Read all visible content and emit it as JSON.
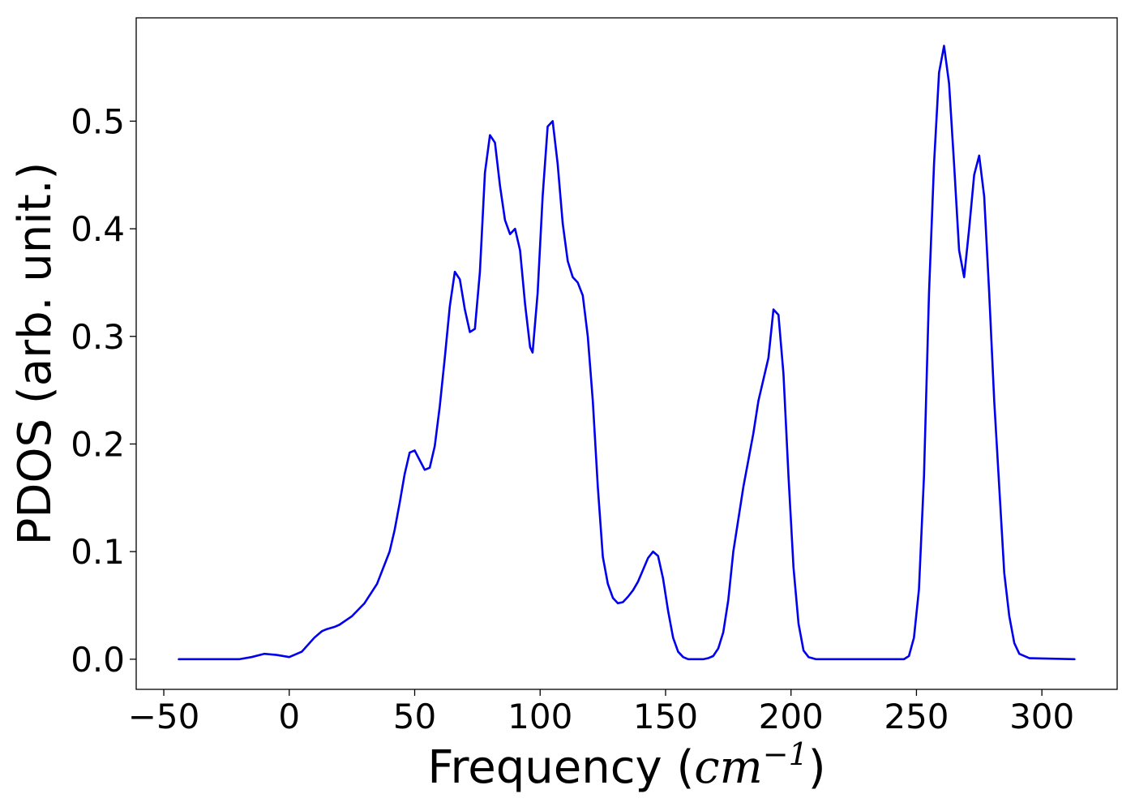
{
  "chart_data": {
    "type": "line",
    "title": "",
    "xlabel_prefix": "Frequency (",
    "xlabel_math": "cm",
    "xlabel_sup": "−1",
    "xlabel_suffix": ")",
    "ylabel": "PDOS (arb. unit.)",
    "xlim": [
      -61,
      330
    ],
    "ylim": [
      -0.028,
      0.596
    ],
    "xticks": [
      -50,
      0,
      50,
      100,
      150,
      200,
      250,
      300
    ],
    "xtick_labels": [
      "−50",
      "0",
      "50",
      "100",
      "150",
      "200",
      "250",
      "300"
    ],
    "yticks": [
      0.0,
      0.1,
      0.2,
      0.3,
      0.4,
      0.5
    ],
    "ytick_labels": [
      "0.0",
      "0.1",
      "0.2",
      "0.3",
      "0.4",
      "0.5"
    ],
    "grid": false,
    "legend": "none",
    "series": [
      {
        "color": "#0000ee",
        "x": [
          -44,
          -20,
          -15,
          -10,
          -5,
          0,
          5,
          10,
          13,
          15,
          18,
          20,
          25,
          30,
          35,
          40,
          42,
          44,
          46,
          48,
          50,
          52,
          54,
          56,
          58,
          60,
          62,
          64,
          66,
          68,
          70,
          72,
          74,
          76,
          78,
          80,
          82,
          84,
          86,
          88,
          90,
          92,
          94,
          96,
          97,
          99,
          101,
          103,
          105,
          107,
          109,
          111,
          113,
          115,
          117,
          119,
          121,
          123,
          125,
          127,
          129,
          131,
          133,
          135,
          137,
          139,
          141,
          143,
          145,
          147,
          149,
          151,
          153,
          155,
          157,
          159,
          161,
          163,
          165,
          167,
          169,
          171,
          173,
          175,
          177,
          179,
          181,
          183,
          185,
          187,
          189,
          191,
          193,
          195,
          197,
          199,
          201,
          203,
          205,
          207,
          210,
          245,
          247,
          249,
          251,
          253,
          255,
          257,
          259,
          261,
          263,
          265,
          267,
          269,
          271,
          273,
          275,
          277,
          279,
          281,
          283,
          285,
          287,
          289,
          291,
          295,
          313
        ],
        "y": [
          0.0,
          0.0,
          0.002,
          0.005,
          0.004,
          0.002,
          0.007,
          0.02,
          0.026,
          0.028,
          0.03,
          0.032,
          0.04,
          0.052,
          0.07,
          0.1,
          0.12,
          0.145,
          0.172,
          0.192,
          0.194,
          0.185,
          0.176,
          0.178,
          0.198,
          0.235,
          0.28,
          0.328,
          0.36,
          0.353,
          0.325,
          0.304,
          0.307,
          0.36,
          0.452,
          0.487,
          0.48,
          0.44,
          0.408,
          0.395,
          0.4,
          0.38,
          0.33,
          0.29,
          0.285,
          0.34,
          0.43,
          0.495,
          0.5,
          0.46,
          0.405,
          0.37,
          0.355,
          0.35,
          0.338,
          0.3,
          0.24,
          0.16,
          0.095,
          0.07,
          0.057,
          0.052,
          0.053,
          0.058,
          0.064,
          0.072,
          0.083,
          0.094,
          0.1,
          0.096,
          0.075,
          0.045,
          0.02,
          0.007,
          0.002,
          0.0,
          0.0,
          0.0,
          0.0,
          0.001,
          0.003,
          0.01,
          0.025,
          0.055,
          0.1,
          0.13,
          0.16,
          0.185,
          0.21,
          0.24,
          0.26,
          0.28,
          0.325,
          0.32,
          0.265,
          0.17,
          0.085,
          0.033,
          0.008,
          0.002,
          0.0,
          0.0,
          0.003,
          0.02,
          0.065,
          0.17,
          0.34,
          0.46,
          0.545,
          0.57,
          0.535,
          0.46,
          0.38,
          0.355,
          0.4,
          0.45,
          0.468,
          0.43,
          0.34,
          0.24,
          0.16,
          0.08,
          0.04,
          0.015,
          0.005,
          0.001,
          0.0
        ]
      }
    ]
  }
}
